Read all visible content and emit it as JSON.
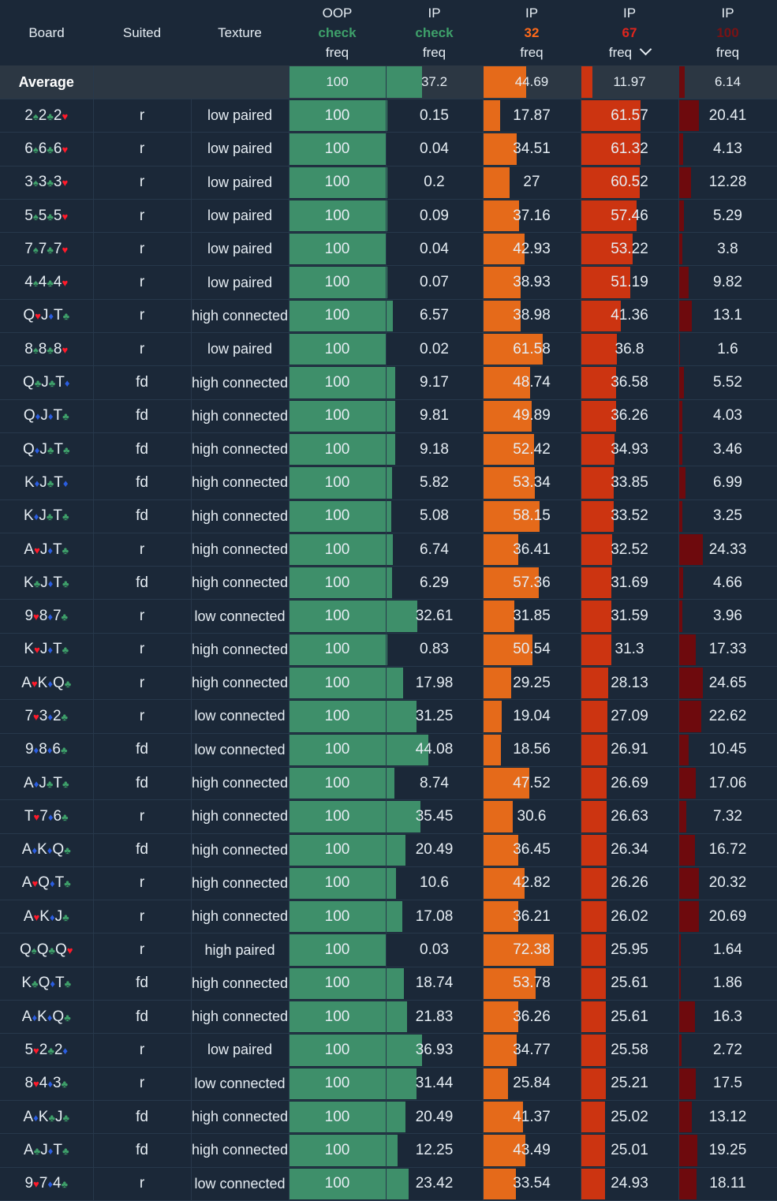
{
  "header": {
    "board": "Board",
    "suited": "Suited",
    "texture": "Texture",
    "cols": [
      {
        "top": "OOP",
        "mid": "check",
        "bot": "freq",
        "mid_class": "green"
      },
      {
        "top": "IP",
        "mid": "check",
        "bot": "freq",
        "mid_class": "green"
      },
      {
        "top": "IP",
        "mid": "32",
        "bot": "freq",
        "mid_class": "orange"
      },
      {
        "top": "IP",
        "mid": "67",
        "bot": "freq",
        "mid_class": "red"
      },
      {
        "top": "IP",
        "mid": "100",
        "bot": "freq",
        "mid_class": "dred"
      }
    ]
  },
  "colors": {
    "c0": "#3e8f6a",
    "c1": "#3e8f6a",
    "c2": "#e56a1a",
    "c3": "#cc3411",
    "c4": "#6e0a0d"
  },
  "average": {
    "label": "Average",
    "values": [
      "100",
      "37.2",
      "44.69",
      "11.97",
      "6.14"
    ]
  },
  "rows": [
    {
      "board": [
        [
          "2",
          "sp"
        ],
        [
          "2",
          "cl"
        ],
        [
          "2",
          "ht"
        ]
      ],
      "suited": "r",
      "texture": "low paired",
      "values": [
        "100",
        "0.15",
        "17.87",
        "61.57",
        "20.41"
      ]
    },
    {
      "board": [
        [
          "6",
          "sp"
        ],
        [
          "6",
          "cl"
        ],
        [
          "6",
          "ht"
        ]
      ],
      "suited": "r",
      "texture": "low paired",
      "values": [
        "100",
        "0.04",
        "34.51",
        "61.32",
        "4.13"
      ]
    },
    {
      "board": [
        [
          "3",
          "sp"
        ],
        [
          "3",
          "cl"
        ],
        [
          "3",
          "ht"
        ]
      ],
      "suited": "r",
      "texture": "low paired",
      "values": [
        "100",
        "0.2",
        "27",
        "60.52",
        "12.28"
      ]
    },
    {
      "board": [
        [
          "5",
          "sp"
        ],
        [
          "5",
          "cl"
        ],
        [
          "5",
          "ht"
        ]
      ],
      "suited": "r",
      "texture": "low paired",
      "values": [
        "100",
        "0.09",
        "37.16",
        "57.46",
        "5.29"
      ]
    },
    {
      "board": [
        [
          "7",
          "sp"
        ],
        [
          "7",
          "cl"
        ],
        [
          "7",
          "ht"
        ]
      ],
      "suited": "r",
      "texture": "low paired",
      "values": [
        "100",
        "0.04",
        "42.93",
        "53.22",
        "3.8"
      ]
    },
    {
      "board": [
        [
          "4",
          "sp"
        ],
        [
          "4",
          "cl"
        ],
        [
          "4",
          "ht"
        ]
      ],
      "suited": "r",
      "texture": "low paired",
      "values": [
        "100",
        "0.07",
        "38.93",
        "51.19",
        "9.82"
      ]
    },
    {
      "board": [
        [
          "Q",
          "ht"
        ],
        [
          "J",
          "dm"
        ],
        [
          "T",
          "cl"
        ]
      ],
      "suited": "r",
      "texture": "high connected",
      "values": [
        "100",
        "6.57",
        "38.98",
        "41.36",
        "13.1"
      ]
    },
    {
      "board": [
        [
          "8",
          "sp"
        ],
        [
          "8",
          "cl"
        ],
        [
          "8",
          "ht"
        ]
      ],
      "suited": "r",
      "texture": "low paired",
      "values": [
        "100",
        "0.02",
        "61.58",
        "36.8",
        "1.6"
      ]
    },
    {
      "board": [
        [
          "Q",
          "cl"
        ],
        [
          "J",
          "cl"
        ],
        [
          "T",
          "dm"
        ]
      ],
      "suited": "fd",
      "texture": "high connected",
      "values": [
        "100",
        "9.17",
        "48.74",
        "36.58",
        "5.52"
      ]
    },
    {
      "board": [
        [
          "Q",
          "dm"
        ],
        [
          "J",
          "dm"
        ],
        [
          "T",
          "cl"
        ]
      ],
      "suited": "fd",
      "texture": "high connected",
      "values": [
        "100",
        "9.81",
        "49.89",
        "36.26",
        "4.03"
      ]
    },
    {
      "board": [
        [
          "Q",
          "dm"
        ],
        [
          "J",
          "cl"
        ],
        [
          "T",
          "cl"
        ]
      ],
      "suited": "fd",
      "texture": "high connected",
      "values": [
        "100",
        "9.18",
        "52.42",
        "34.93",
        "3.46"
      ]
    },
    {
      "board": [
        [
          "K",
          "dm"
        ],
        [
          "J",
          "cl"
        ],
        [
          "T",
          "dm"
        ]
      ],
      "suited": "fd",
      "texture": "high connected",
      "values": [
        "100",
        "5.82",
        "53.34",
        "33.85",
        "6.99"
      ]
    },
    {
      "board": [
        [
          "K",
          "dm"
        ],
        [
          "J",
          "cl"
        ],
        [
          "T",
          "cl"
        ]
      ],
      "suited": "fd",
      "texture": "high connected",
      "values": [
        "100",
        "5.08",
        "58.15",
        "33.52",
        "3.25"
      ]
    },
    {
      "board": [
        [
          "A",
          "ht"
        ],
        [
          "J",
          "dm"
        ],
        [
          "T",
          "cl"
        ]
      ],
      "suited": "r",
      "texture": "high connected",
      "values": [
        "100",
        "6.74",
        "36.41",
        "32.52",
        "24.33"
      ]
    },
    {
      "board": [
        [
          "K",
          "cl"
        ],
        [
          "J",
          "dm"
        ],
        [
          "T",
          "cl"
        ]
      ],
      "suited": "fd",
      "texture": "high connected",
      "values": [
        "100",
        "6.29",
        "57.36",
        "31.69",
        "4.66"
      ]
    },
    {
      "board": [
        [
          "9",
          "ht"
        ],
        [
          "8",
          "dm"
        ],
        [
          "7",
          "cl"
        ]
      ],
      "suited": "r",
      "texture": "low connected",
      "values": [
        "100",
        "32.61",
        "31.85",
        "31.59",
        "3.96"
      ]
    },
    {
      "board": [
        [
          "K",
          "ht"
        ],
        [
          "J",
          "dm"
        ],
        [
          "T",
          "cl"
        ]
      ],
      "suited": "r",
      "texture": "high connected",
      "values": [
        "100",
        "0.83",
        "50.54",
        "31.3",
        "17.33"
      ]
    },
    {
      "board": [
        [
          "A",
          "ht"
        ],
        [
          "K",
          "dm"
        ],
        [
          "Q",
          "cl"
        ]
      ],
      "suited": "r",
      "texture": "high connected",
      "values": [
        "100",
        "17.98",
        "29.25",
        "28.13",
        "24.65"
      ]
    },
    {
      "board": [
        [
          "7",
          "ht"
        ],
        [
          "3",
          "dm"
        ],
        [
          "2",
          "cl"
        ]
      ],
      "suited": "r",
      "texture": "low connected",
      "values": [
        "100",
        "31.25",
        "19.04",
        "27.09",
        "22.62"
      ]
    },
    {
      "board": [
        [
          "9",
          "dm"
        ],
        [
          "8",
          "dm"
        ],
        [
          "6",
          "cl"
        ]
      ],
      "suited": "fd",
      "texture": "low connected",
      "values": [
        "100",
        "44.08",
        "18.56",
        "26.91",
        "10.45"
      ]
    },
    {
      "board": [
        [
          "A",
          "dm"
        ],
        [
          "J",
          "cl"
        ],
        [
          "T",
          "cl"
        ]
      ],
      "suited": "fd",
      "texture": "high connected",
      "values": [
        "100",
        "8.74",
        "47.52",
        "26.69",
        "17.06"
      ]
    },
    {
      "board": [
        [
          "T",
          "ht"
        ],
        [
          "7",
          "dm"
        ],
        [
          "6",
          "cl"
        ]
      ],
      "suited": "r",
      "texture": "high connected",
      "values": [
        "100",
        "35.45",
        "30.6",
        "26.63",
        "7.32"
      ]
    },
    {
      "board": [
        [
          "A",
          "dm"
        ],
        [
          "K",
          "dm"
        ],
        [
          "Q",
          "cl"
        ]
      ],
      "suited": "fd",
      "texture": "high connected",
      "values": [
        "100",
        "20.49",
        "36.45",
        "26.34",
        "16.72"
      ]
    },
    {
      "board": [
        [
          "A",
          "ht"
        ],
        [
          "Q",
          "dm"
        ],
        [
          "T",
          "cl"
        ]
      ],
      "suited": "r",
      "texture": "high connected",
      "values": [
        "100",
        "10.6",
        "42.82",
        "26.26",
        "20.32"
      ]
    },
    {
      "board": [
        [
          "A",
          "ht"
        ],
        [
          "K",
          "dm"
        ],
        [
          "J",
          "cl"
        ]
      ],
      "suited": "r",
      "texture": "high connected",
      "values": [
        "100",
        "17.08",
        "36.21",
        "26.02",
        "20.69"
      ]
    },
    {
      "board": [
        [
          "Q",
          "sp"
        ],
        [
          "Q",
          "cl"
        ],
        [
          "Q",
          "ht"
        ]
      ],
      "suited": "r",
      "texture": "high paired",
      "values": [
        "100",
        "0.03",
        "72.38",
        "25.95",
        "1.64"
      ]
    },
    {
      "board": [
        [
          "K",
          "cl"
        ],
        [
          "Q",
          "dm"
        ],
        [
          "T",
          "cl"
        ]
      ],
      "suited": "fd",
      "texture": "high connected",
      "values": [
        "100",
        "18.74",
        "53.78",
        "25.61",
        "1.86"
      ]
    },
    {
      "board": [
        [
          "A",
          "dm"
        ],
        [
          "K",
          "dm"
        ],
        [
          "Q",
          "cl"
        ]
      ],
      "suited": "fd",
      "texture": "high connected",
      "values": [
        "100",
        "21.83",
        "36.26",
        "25.61",
        "16.3"
      ]
    },
    {
      "board": [
        [
          "5",
          "ht"
        ],
        [
          "2",
          "cl"
        ],
        [
          "2",
          "dm"
        ]
      ],
      "suited": "r",
      "texture": "low paired",
      "values": [
        "100",
        "36.93",
        "34.77",
        "25.58",
        "2.72"
      ]
    },
    {
      "board": [
        [
          "8",
          "ht"
        ],
        [
          "4",
          "dm"
        ],
        [
          "3",
          "cl"
        ]
      ],
      "suited": "r",
      "texture": "low connected",
      "values": [
        "100",
        "31.44",
        "25.84",
        "25.21",
        "17.5"
      ]
    },
    {
      "board": [
        [
          "A",
          "dm"
        ],
        [
          "K",
          "cl"
        ],
        [
          "J",
          "cl"
        ]
      ],
      "suited": "fd",
      "texture": "high connected",
      "values": [
        "100",
        "20.49",
        "41.37",
        "25.02",
        "13.12"
      ]
    },
    {
      "board": [
        [
          "A",
          "cl"
        ],
        [
          "J",
          "dm"
        ],
        [
          "T",
          "cl"
        ]
      ],
      "suited": "fd",
      "texture": "high connected",
      "values": [
        "100",
        "12.25",
        "43.49",
        "25.01",
        "19.25"
      ]
    },
    {
      "board": [
        [
          "9",
          "ht"
        ],
        [
          "7",
          "dm"
        ],
        [
          "4",
          "cl"
        ]
      ],
      "suited": "r",
      "texture": "low connected",
      "values": [
        "100",
        "23.42",
        "33.54",
        "24.93",
        "18.11"
      ]
    }
  ]
}
